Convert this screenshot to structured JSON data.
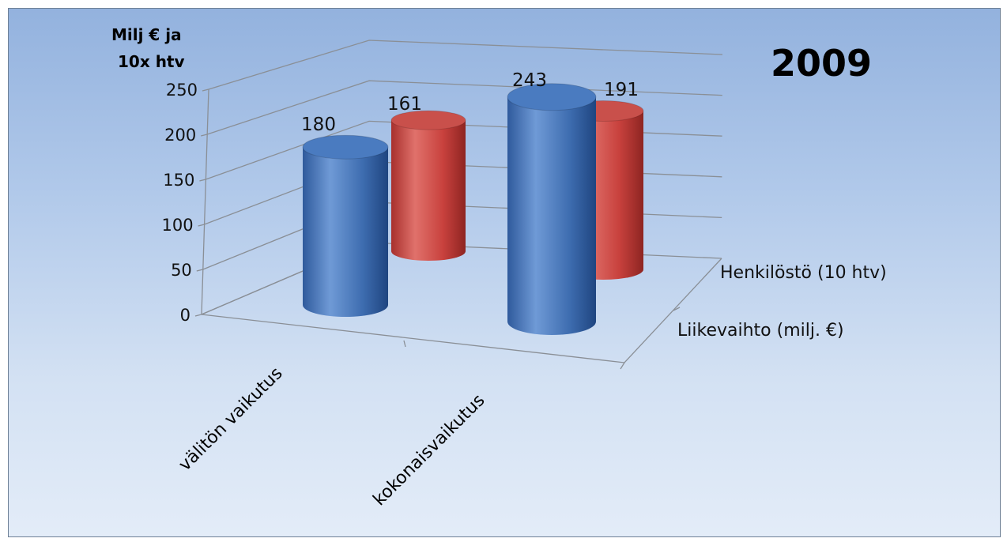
{
  "chart_data": {
    "type": "bar",
    "title": "2009",
    "ylabel_line1": "Milj € ja",
    "ylabel_line2": "10x htv",
    "xlabel": "",
    "ylim": [
      0,
      250
    ],
    "yticks": [
      "0",
      "50",
      "100",
      "150",
      "200",
      "250"
    ],
    "categories": [
      "välitön vaikutus",
      "kokonaisvaikutus"
    ],
    "series": [
      {
        "name": "Liikevaihto (milj. €)",
        "color": "#3d6fb5",
        "values": [
          180,
          243
        ]
      },
      {
        "name": "Henkilöstö (10 htv)",
        "color": "#c8413d",
        "values": [
          161,
          191
        ]
      }
    ],
    "grid": true,
    "legend": "depth-axis-right",
    "data_labels": [
      "180",
      "243",
      "161",
      "191"
    ]
  }
}
